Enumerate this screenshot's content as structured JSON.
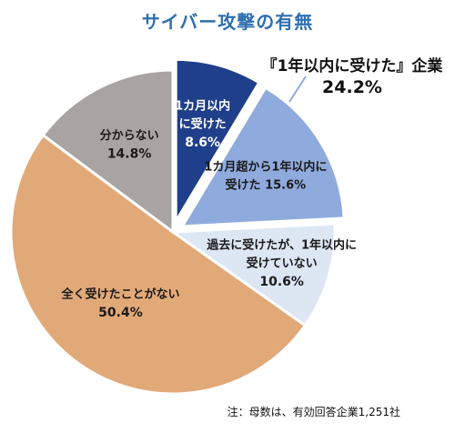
{
  "title": "サイバー攻撃の有無",
  "callout": {
    "label": "『1年以内に受けた』企業",
    "value": "24.2%"
  },
  "note": "注：母数は、有効回答企業1,251社",
  "chart_data": {
    "type": "pie",
    "title": "サイバー攻撃の有無",
    "slices": [
      {
        "label": [
          "1カ月以内",
          "に受けた"
        ],
        "value": 8.6,
        "value_label": "8.6%",
        "color": "#1f3f8a",
        "text_color": "#ffffff",
        "exploded": true
      },
      {
        "label": [
          "1カ月超から1年以内に",
          "受けた 15.6%"
        ],
        "value": 15.6,
        "value_label": "",
        "color": "#8faadc",
        "text_color": "#1a1a1a",
        "exploded": true
      },
      {
        "label": [
          "過去に受けたが、1年以内に",
          "受けていない"
        ],
        "value": 10.6,
        "value_label": "10.6%",
        "color": "#dde6f3",
        "text_color": "#1a1a1a",
        "exploded": false
      },
      {
        "label": [
          "全く受けたことがない"
        ],
        "value": 50.4,
        "value_label": "50.4%",
        "color": "#e2a978",
        "text_color": "#1a1a1a",
        "exploded": false
      },
      {
        "label": [
          "分からない"
        ],
        "value": 14.8,
        "value_label": "14.8%",
        "color": "#a8a4a4",
        "text_color": "#1a1a1a",
        "exploded": false
      }
    ]
  }
}
